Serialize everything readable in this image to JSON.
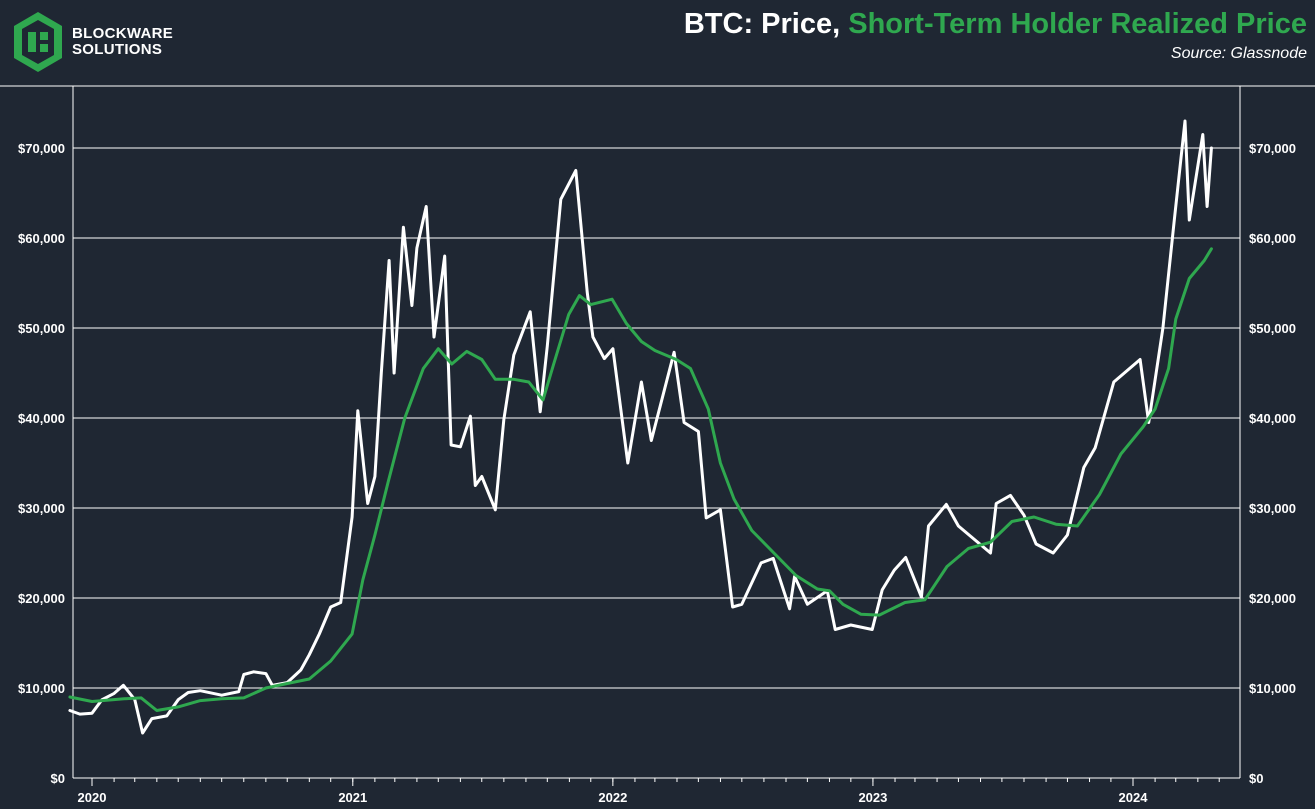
{
  "brand": {
    "line1": "BLOCKWARE",
    "line2": "SOLUTIONS",
    "logo_icon": "blockware-logo-icon"
  },
  "header": {
    "title_white": "BTC: Price,",
    "title_green": "Short-Term Holder Realized Price",
    "source": "Source: Glassnode"
  },
  "colors": {
    "background": "#1f2733",
    "price": "#ffffff",
    "sth": "#2fa84f",
    "grid": "#ffffff"
  },
  "chart_data": {
    "type": "line",
    "y_axis": {
      "min": 0,
      "max": 70000,
      "ticks": [
        0,
        10000,
        20000,
        30000,
        40000,
        50000,
        60000,
        70000
      ],
      "tick_labels": [
        "$0",
        "$10,000",
        "$20,000",
        "$30,000",
        "$40,000",
        "$50,000",
        "$60,000",
        "$70,000"
      ],
      "position": "both"
    },
    "x_axis": {
      "min": "2019-12-01",
      "max": "2024-05-10",
      "ticks": [
        "2020-01-01",
        "2021-01-01",
        "2022-01-01",
        "2023-01-01",
        "2024-01-01"
      ],
      "tick_labels": [
        "2020",
        "2021",
        "2022",
        "2023",
        "2024"
      ]
    },
    "grid": "horizontal",
    "series": [
      {
        "key": "price",
        "color": "#ffffff",
        "points": [
          [
            "2019-12-01",
            7500
          ],
          [
            "2019-12-15",
            7100
          ],
          [
            "2020-01-01",
            7200
          ],
          [
            "2020-01-15",
            8700
          ],
          [
            "2020-02-01",
            9400
          ],
          [
            "2020-02-14",
            10300
          ],
          [
            "2020-03-01",
            8700
          ],
          [
            "2020-03-12",
            5000
          ],
          [
            "2020-03-25",
            6600
          ],
          [
            "2020-04-15",
            6900
          ],
          [
            "2020-05-01",
            8700
          ],
          [
            "2020-05-15",
            9500
          ],
          [
            "2020-06-01",
            9700
          ],
          [
            "2020-07-01",
            9200
          ],
          [
            "2020-07-25",
            9600
          ],
          [
            "2020-08-01",
            11500
          ],
          [
            "2020-08-15",
            11800
          ],
          [
            "2020-09-01",
            11600
          ],
          [
            "2020-09-10",
            10300
          ],
          [
            "2020-10-01",
            10600
          ],
          [
            "2020-10-20",
            12000
          ],
          [
            "2020-11-01",
            13700
          ],
          [
            "2020-11-15",
            16000
          ],
          [
            "2020-12-01",
            19000
          ],
          [
            "2020-12-15",
            19500
          ],
          [
            "2020-12-31",
            29000
          ],
          [
            "2021-01-08",
            40800
          ],
          [
            "2021-01-22",
            30500
          ],
          [
            "2021-02-01",
            33500
          ],
          [
            "2021-02-10",
            45000
          ],
          [
            "2021-02-21",
            57500
          ],
          [
            "2021-02-28",
            45000
          ],
          [
            "2021-03-13",
            61200
          ],
          [
            "2021-03-25",
            52500
          ],
          [
            "2021-04-01",
            58900
          ],
          [
            "2021-04-14",
            63500
          ],
          [
            "2021-04-25",
            49000
          ],
          [
            "2021-05-10",
            58000
          ],
          [
            "2021-05-19",
            37000
          ],
          [
            "2021-06-01",
            36800
          ],
          [
            "2021-06-15",
            40200
          ],
          [
            "2021-06-22",
            32500
          ],
          [
            "2021-07-01",
            33500
          ],
          [
            "2021-07-20",
            29800
          ],
          [
            "2021-08-01",
            39800
          ],
          [
            "2021-08-15",
            47000
          ],
          [
            "2021-09-07",
            51800
          ],
          [
            "2021-09-21",
            40700
          ],
          [
            "2021-10-01",
            48000
          ],
          [
            "2021-10-20",
            64300
          ],
          [
            "2021-11-10",
            67500
          ],
          [
            "2021-11-26",
            54000
          ],
          [
            "2021-12-04",
            49000
          ],
          [
            "2021-12-20",
            46600
          ],
          [
            "2022-01-01",
            47700
          ],
          [
            "2022-01-22",
            35000
          ],
          [
            "2022-02-10",
            44000
          ],
          [
            "2022-02-24",
            37500
          ],
          [
            "2022-03-28",
            47300
          ],
          [
            "2022-04-11",
            39500
          ],
          [
            "2022-05-01",
            38500
          ],
          [
            "2022-05-12",
            28900
          ],
          [
            "2022-06-01",
            29800
          ],
          [
            "2022-06-18",
            19000
          ],
          [
            "2022-07-01",
            19300
          ],
          [
            "2022-07-28",
            23900
          ],
          [
            "2022-08-14",
            24400
          ],
          [
            "2022-09-06",
            18800
          ],
          [
            "2022-09-13",
            22400
          ],
          [
            "2022-10-01",
            19300
          ],
          [
            "2022-10-29",
            20800
          ],
          [
            "2022-11-09",
            16500
          ],
          [
            "2022-12-01",
            17000
          ],
          [
            "2022-12-31",
            16500
          ],
          [
            "2023-01-14",
            20900
          ],
          [
            "2023-01-31",
            23100
          ],
          [
            "2023-02-16",
            24500
          ],
          [
            "2023-03-10",
            20100
          ],
          [
            "2023-03-20",
            28000
          ],
          [
            "2023-04-14",
            30400
          ],
          [
            "2023-05-01",
            28000
          ],
          [
            "2023-06-15",
            25000
          ],
          [
            "2023-06-23",
            30500
          ],
          [
            "2023-07-13",
            31400
          ],
          [
            "2023-08-01",
            29200
          ],
          [
            "2023-08-18",
            26000
          ],
          [
            "2023-09-11",
            25000
          ],
          [
            "2023-10-01",
            27000
          ],
          [
            "2023-10-24",
            34500
          ],
          [
            "2023-11-09",
            36700
          ],
          [
            "2023-12-05",
            44000
          ],
          [
            "2024-01-11",
            46500
          ],
          [
            "2024-01-23",
            39500
          ],
          [
            "2024-02-12",
            50000
          ],
          [
            "2024-02-28",
            62000
          ],
          [
            "2024-03-14",
            73000
          ],
          [
            "2024-03-20",
            62000
          ],
          [
            "2024-04-08",
            71500
          ],
          [
            "2024-04-14",
            63500
          ],
          [
            "2024-04-20",
            70000
          ]
        ]
      },
      {
        "key": "sth_realized_price",
        "color": "#2fa84f",
        "points": [
          [
            "2019-12-01",
            9000
          ],
          [
            "2020-01-01",
            8500
          ],
          [
            "2020-02-15",
            8800
          ],
          [
            "2020-03-10",
            8900
          ],
          [
            "2020-04-01",
            7500
          ],
          [
            "2020-05-01",
            7900
          ],
          [
            "2020-06-01",
            8600
          ],
          [
            "2020-07-01",
            8800
          ],
          [
            "2020-08-01",
            8900
          ],
          [
            "2020-09-01",
            10000
          ],
          [
            "2020-10-01",
            10500
          ],
          [
            "2020-11-01",
            11000
          ],
          [
            "2020-12-01",
            13000
          ],
          [
            "2020-12-31",
            16000
          ],
          [
            "2021-01-15",
            22000
          ],
          [
            "2021-02-01",
            27000
          ],
          [
            "2021-02-20",
            33000
          ],
          [
            "2021-03-15",
            40000
          ],
          [
            "2021-04-10",
            45500
          ],
          [
            "2021-05-01",
            47700
          ],
          [
            "2021-05-20",
            46000
          ],
          [
            "2021-06-10",
            47400
          ],
          [
            "2021-07-01",
            46500
          ],
          [
            "2021-07-20",
            44300
          ],
          [
            "2021-08-15",
            44300
          ],
          [
            "2021-09-05",
            44000
          ],
          [
            "2021-09-25",
            42000
          ],
          [
            "2021-10-10",
            46000
          ],
          [
            "2021-10-31",
            51500
          ],
          [
            "2021-11-15",
            53600
          ],
          [
            "2021-12-01",
            52600
          ],
          [
            "2021-12-31",
            53200
          ],
          [
            "2022-01-20",
            50500
          ],
          [
            "2022-02-10",
            48500
          ],
          [
            "2022-03-01",
            47500
          ],
          [
            "2022-03-31",
            46500
          ],
          [
            "2022-04-20",
            45500
          ],
          [
            "2022-05-15",
            41000
          ],
          [
            "2022-06-01",
            35000
          ],
          [
            "2022-06-20",
            31000
          ],
          [
            "2022-07-15",
            27500
          ],
          [
            "2022-08-15",
            25000
          ],
          [
            "2022-09-15",
            22500
          ],
          [
            "2022-10-15",
            21000
          ],
          [
            "2022-11-01",
            20800
          ],
          [
            "2022-11-20",
            19300
          ],
          [
            "2022-12-15",
            18200
          ],
          [
            "2023-01-10",
            18100
          ],
          [
            "2023-02-15",
            19500
          ],
          [
            "2023-03-15",
            19800
          ],
          [
            "2023-04-15",
            23500
          ],
          [
            "2023-05-15",
            25500
          ],
          [
            "2023-06-15",
            26200
          ],
          [
            "2023-07-15",
            28500
          ],
          [
            "2023-08-15",
            29000
          ],
          [
            "2023-09-15",
            28200
          ],
          [
            "2023-10-15",
            28000
          ],
          [
            "2023-11-15",
            31500
          ],
          [
            "2023-12-15",
            36000
          ],
          [
            "2024-01-15",
            39000
          ],
          [
            "2024-02-01",
            41000
          ],
          [
            "2024-02-20",
            45500
          ],
          [
            "2024-03-01",
            51000
          ],
          [
            "2024-03-20",
            55500
          ],
          [
            "2024-04-10",
            57500
          ],
          [
            "2024-04-20",
            58800
          ]
        ]
      }
    ]
  }
}
